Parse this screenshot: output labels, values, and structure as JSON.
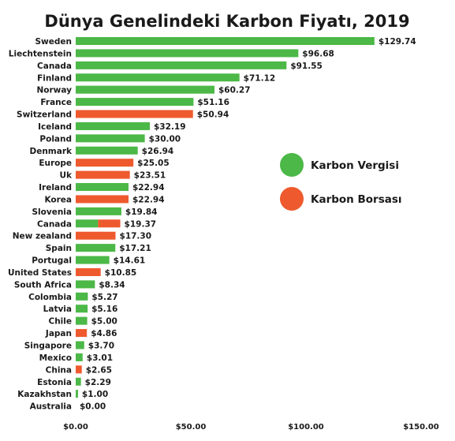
{
  "chart_data": {
    "type": "bar",
    "orientation": "horizontal",
    "title": "Dünya Genelindeki Karbon Fiyatı, 2019",
    "xlabel": "",
    "ylabel": "",
    "xlim": [
      0,
      150
    ],
    "grid": false,
    "legend_position": "right",
    "series": [
      {
        "name": "Karbon Vergisi",
        "color": "#4CB847"
      },
      {
        "name": "Karbon Borsası",
        "color": "#EE5A2E"
      }
    ],
    "x_ticks": [
      {
        "value": 0,
        "label": "$0.00"
      },
      {
        "value": 50,
        "label": "$50.00"
      },
      {
        "value": 100,
        "label": "$100.00"
      },
      {
        "value": 150,
        "label": "$150.00"
      }
    ],
    "bars": [
      {
        "category": "Sweden",
        "value": 129.74,
        "label": "$129.74",
        "type": "Karbon Vergisi"
      },
      {
        "category": "Liechtenstein",
        "value": 96.68,
        "label": "$96.68",
        "type": "Karbon Vergisi"
      },
      {
        "category": "Canada",
        "value": 91.55,
        "label": "$91.55",
        "type": "Karbon Vergisi"
      },
      {
        "category": "Finland",
        "value": 71.12,
        "label": "$71.12",
        "type": "Karbon Vergisi"
      },
      {
        "category": "Norway",
        "value": 60.27,
        "label": "$60.27",
        "type": "Karbon Vergisi"
      },
      {
        "category": "France",
        "value": 51.16,
        "label": "$51.16",
        "type": "Karbon Vergisi"
      },
      {
        "category": "Switzerland",
        "value": 50.94,
        "label": "$50.94",
        "type": "Karbon Borsası"
      },
      {
        "category": "Iceland",
        "value": 32.19,
        "label": "$32.19",
        "type": "Karbon Vergisi"
      },
      {
        "category": "Poland",
        "value": 30.0,
        "label": "$30.00",
        "type": "Karbon Vergisi"
      },
      {
        "category": "Denmark",
        "value": 26.94,
        "label": "$26.94",
        "type": "Karbon Vergisi"
      },
      {
        "category": "Europe",
        "value": 25.05,
        "label": "$25.05",
        "type": "Karbon Borsası"
      },
      {
        "category": "Uk",
        "value": 23.51,
        "label": "$23.51",
        "type": "Karbon Borsası"
      },
      {
        "category": "Ireland",
        "value": 22.94,
        "label": "$22.94",
        "type": "Karbon Vergisi"
      },
      {
        "category": "Korea",
        "value": 22.94,
        "label": "$22.94",
        "type": "Karbon Borsası"
      },
      {
        "category": "Slovenia",
        "value": 19.84,
        "label": "$19.84",
        "type": "Karbon Vergisi"
      },
      {
        "category": "Canada",
        "value": 19.37,
        "label": "$19.37",
        "type": "both",
        "tax_part": 9.7
      },
      {
        "category": "New zealand",
        "value": 17.3,
        "label": "$17.30",
        "type": "Karbon Borsası"
      },
      {
        "category": "Spain",
        "value": 17.21,
        "label": "$17.21",
        "type": "Karbon Vergisi"
      },
      {
        "category": "Portugal",
        "value": 14.61,
        "label": "$14.61",
        "type": "Karbon Vergisi"
      },
      {
        "category": "United States",
        "value": 10.85,
        "label": "$10.85",
        "type": "Karbon Borsası"
      },
      {
        "category": "South Africa",
        "value": 8.34,
        "label": "$8.34",
        "type": "Karbon Vergisi"
      },
      {
        "category": "Colombia",
        "value": 5.27,
        "label": "$5.27",
        "type": "Karbon Vergisi"
      },
      {
        "category": "Latvia",
        "value": 5.16,
        "label": "$5.16",
        "type": "Karbon Vergisi"
      },
      {
        "category": "Chile",
        "value": 5.0,
        "label": "$5.00",
        "type": "Karbon Vergisi"
      },
      {
        "category": "Japan",
        "value": 4.86,
        "label": "$4.86",
        "type": "Karbon Borsası"
      },
      {
        "category": "Singapore",
        "value": 3.7,
        "label": "$3.70",
        "type": "Karbon Vergisi"
      },
      {
        "category": "Mexico",
        "value": 3.01,
        "label": "$3.01",
        "type": "Karbon Vergisi"
      },
      {
        "category": "China",
        "value": 2.65,
        "label": "$2.65",
        "type": "Karbon Borsası"
      },
      {
        "category": "Estonia",
        "value": 2.29,
        "label": "$2.29",
        "type": "Karbon Vergisi"
      },
      {
        "category": "Kazakhstan",
        "value": 1.0,
        "label": "$1.00",
        "type": "Karbon Vergisi"
      },
      {
        "category": "Australia",
        "value": 0.0,
        "label": "$0.00",
        "type": "Karbon Vergisi"
      }
    ]
  }
}
